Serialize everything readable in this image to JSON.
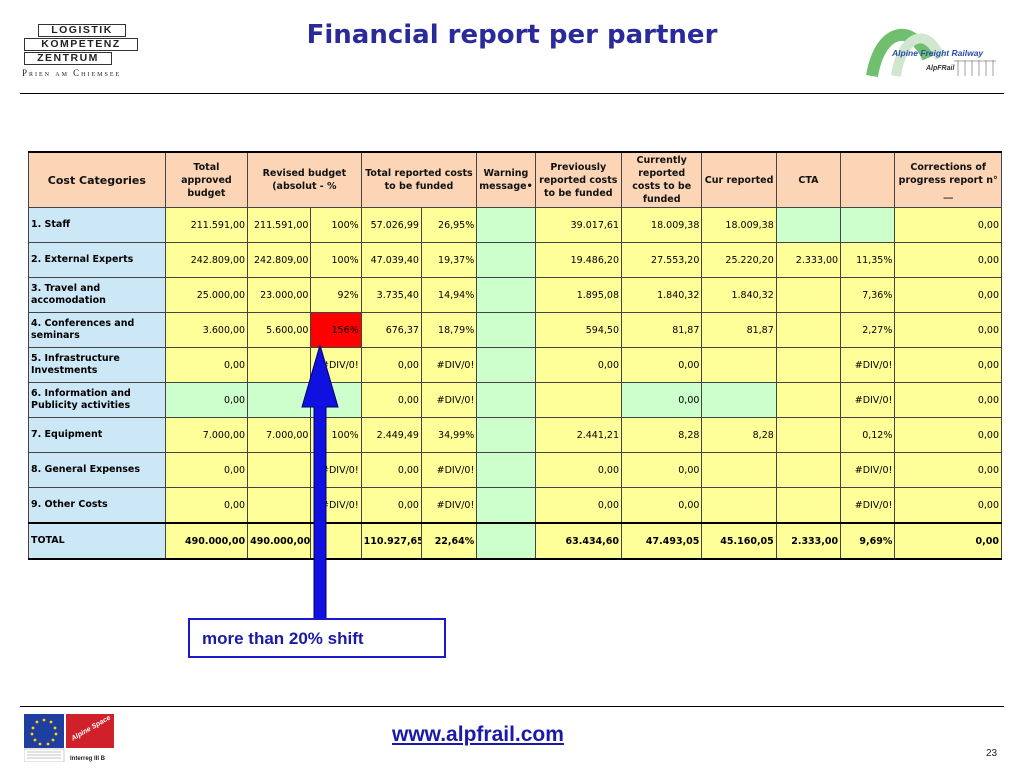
{
  "header": {
    "title": "Financial report per partner",
    "lkz_logo": {
      "line1": "LOGISTIK",
      "line2": "KOMPETENZ",
      "line3": "ZENTRUM",
      "tagline": "Prien am Chiemsee"
    },
    "afr_logo": {
      "name": "Alpine Freight Railway",
      "abbr": "AlpFRail",
      "accent": "#2b4aa8",
      "green": "#2c8c3c"
    }
  },
  "table": {
    "columns": [
      "Cost Categories",
      "Total approved budget",
      "Revised budget (absolut - %",
      "Total reported costs to be funded",
      "Warning message•",
      "Previously reported costs to be funded",
      "Currently reported costs to be funded",
      "Cur reported",
      "CTA",
      "",
      "Corrections of progress report n° __"
    ],
    "rows": [
      {
        "cat": "1. Staff",
        "tab": "211.591,00",
        "rb": "211.591,00",
        "rbp": "100%",
        "trc": "57.026,99",
        "trcp": "26,95%",
        "prev": "39.017,61",
        "cur": "18.009,38",
        "curr": "18.009,38",
        "cta": "",
        "pct": "",
        "corr": "0,00"
      },
      {
        "cat": "2. External Experts",
        "tab": "242.809,00",
        "rb": "242.809,00",
        "rbp": "100%",
        "trc": "47.039,40",
        "trcp": "19,37%",
        "prev": "19.486,20",
        "cur": "27.553,20",
        "curr": "25.220,20",
        "cta": "2.333,00",
        "pct": "11,35%",
        "corr": "0,00"
      },
      {
        "cat": "3. Travel and accomodation",
        "tab": "25.000,00",
        "rb": "23.000,00",
        "rbp": "92%",
        "trc": "3.735,40",
        "trcp": "14,94%",
        "prev": "1.895,08",
        "cur": "1.840,32",
        "curr": "1.840,32",
        "cta": "",
        "pct": "7,36%",
        "corr": "0,00"
      },
      {
        "cat": "4. Conferences and seminars",
        "tab": "3.600,00",
        "rb": "5.600,00",
        "rbp": "156%",
        "trc": "676,37",
        "trcp": "18,79%",
        "prev": "594,50",
        "cur": "81,87",
        "curr": "81,87",
        "cta": "",
        "pct": "2,27%",
        "corr": "0,00"
      },
      {
        "cat": "5. Infrastructure Investments",
        "tab": "0,00",
        "rb": "",
        "rbp": "#DIV/0!",
        "trc": "0,00",
        "trcp": "#DIV/0!",
        "prev": "0,00",
        "cur": "0,00",
        "curr": "",
        "cta": "",
        "pct": "#DIV/0!",
        "corr": "0,00"
      },
      {
        "cat": "6. Information and Publicity activities",
        "tab": "0,00",
        "rb": "",
        "rbp": "",
        "trc": "0,00",
        "trcp": "#DIV/0!",
        "prev": "",
        "cur": "0,00",
        "curr": "",
        "cta": "",
        "pct": "#DIV/0!",
        "corr": "0,00"
      },
      {
        "cat": "7. Equipment",
        "tab": "7.000,00",
        "rb": "7.000,00",
        "rbp": "100%",
        "trc": "2.449,49",
        "trcp": "34,99%",
        "prev": "2.441,21",
        "cur": "8,28",
        "curr": "8,28",
        "cta": "",
        "pct": "0,12%",
        "corr": "0,00"
      },
      {
        "cat": "8. General Expenses",
        "tab": "0,00",
        "rb": "",
        "rbp": "#DIV/0!",
        "trc": "0,00",
        "trcp": "#DIV/0!",
        "prev": "0,00",
        "cur": "0,00",
        "curr": "",
        "cta": "",
        "pct": "#DIV/0!",
        "corr": "0,00"
      },
      {
        "cat": "9. Other Costs",
        "tab": "0,00",
        "rb": "",
        "rbp": "#DIV/0!",
        "trc": "0,00",
        "trcp": "#DIV/0!",
        "prev": "0,00",
        "cur": "0,00",
        "curr": "",
        "cta": "",
        "pct": "#DIV/0!",
        "corr": "0,00"
      },
      {
        "cat": "TOTAL",
        "tab": "490.000,00",
        "rb": "490.000,00",
        "rbp": "",
        "trc": "110.927,65",
        "trcp": "22,64%",
        "prev": "63.434,60",
        "cur": "47.493,05",
        "curr": "45.160,05",
        "cta": "2.333,00",
        "pct": "9,69%",
        "corr": "0,00"
      }
    ],
    "colors": {
      "header": "#fbd5b5",
      "category": "#cce7f6",
      "yellow": "#ffff99",
      "green": "#ccffcc",
      "alert": "#ff0000"
    }
  },
  "callout": {
    "text": "more than 20% shift",
    "color": "#1a1acc"
  },
  "footer": {
    "url": "www.alpfrail.com",
    "page": "23",
    "eu_logo": {
      "program": "Interreg III B",
      "label": "Alpine Space"
    }
  }
}
